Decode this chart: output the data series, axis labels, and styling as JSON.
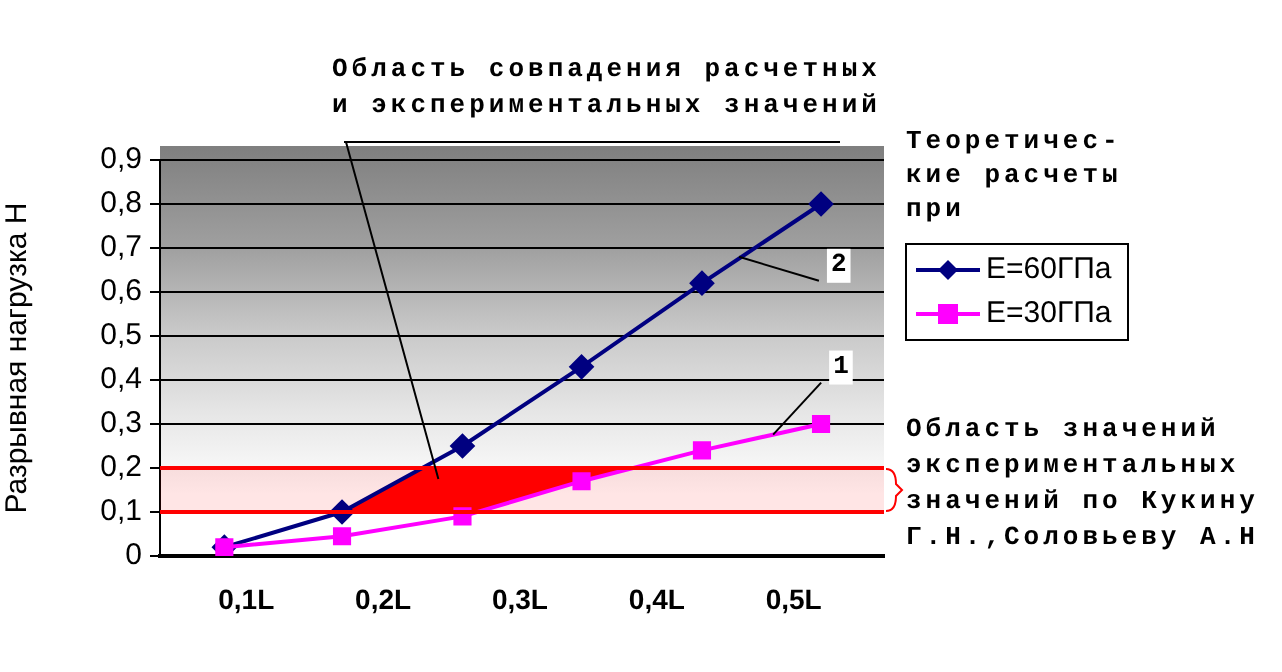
{
  "chart_data": {
    "type": "line",
    "x": [
      0.084,
      0.17,
      0.258,
      0.345,
      0.433,
      0.52
    ],
    "xlim": [
      0.037,
      0.566
    ],
    "xticks": [
      {
        "value": 0.1,
        "label": "0,1L"
      },
      {
        "value": 0.2,
        "label": "0,2L"
      },
      {
        "value": 0.3,
        "label": "0,3L"
      },
      {
        "value": 0.4,
        "label": "0,4L"
      },
      {
        "value": 0.5,
        "label": "0,5L"
      }
    ],
    "ylim": [
      0,
      0.9
    ],
    "yticks": [
      0,
      {
        "value": 0.1,
        "label": "0,1"
      },
      {
        "value": 0.2,
        "label": "0,2"
      },
      {
        "value": 0.3,
        "label": "0,3"
      },
      {
        "value": 0.4,
        "label": "0,4"
      },
      {
        "value": 0.5,
        "label": "0,5"
      },
      {
        "value": 0.6,
        "label": "0,6"
      },
      {
        "value": 0.7,
        "label": "0,7"
      },
      {
        "value": 0.8,
        "label": "0,8"
      },
      {
        "value": 0.9,
        "label": "0,9"
      }
    ],
    "ylabel": "Разрывная нагрузка Н",
    "legend_title": "Теоретичес-\nкие расчеты\nпри",
    "legend": "right",
    "grid": "y",
    "series": [
      {
        "name": "E=60ГПа",
        "color": "#000080",
        "marker": "diamond",
        "values": [
          0.02,
          0.1,
          0.25,
          0.43,
          0.62,
          0.8
        ]
      },
      {
        "name": "E=30ГПа",
        "color": "#ff00ff",
        "marker": "square",
        "values": [
          0.02,
          0.045,
          0.09,
          0.17,
          0.24,
          0.3
        ]
      }
    ],
    "bands": [
      {
        "axis": "y",
        "from": 0.1,
        "to": 0.2,
        "color": "#ff0000",
        "label": "Область значений\nэкспериментальных\nзначений по Кукину\nГ.Н.,Соловьеву А.Н"
      }
    ],
    "annotations": [
      "Область совпадения расчетных\nи экспериментальных значений",
      {
        "text": "2",
        "x": 0.46,
        "y": 0.68
      },
      {
        "text": "1",
        "x": 0.485,
        "y": 0.276
      }
    ]
  }
}
